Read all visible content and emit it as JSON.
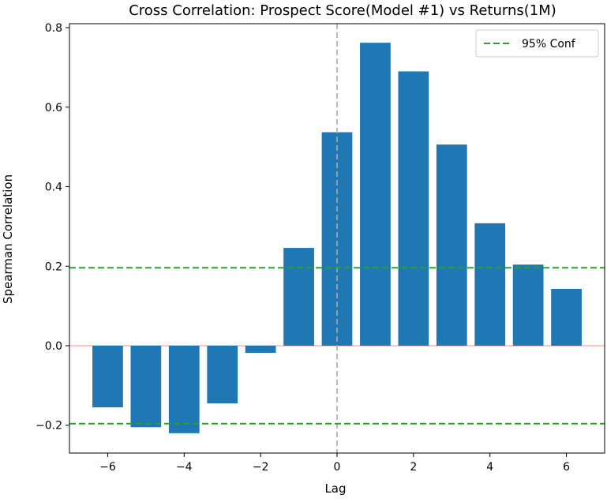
{
  "chart_data": {
    "type": "bar",
    "title": "Cross Correlation: Prospect Score(Model #1) vs Returns(1M)",
    "xlabel": "Lag",
    "ylabel": "Spearman Correlation",
    "x": [
      -6,
      -5,
      -4,
      -3,
      -2,
      -1,
      0,
      1,
      2,
      3,
      4,
      5,
      6
    ],
    "values": [
      -0.155,
      -0.205,
      -0.22,
      -0.145,
      -0.018,
      0.246,
      0.537,
      0.762,
      0.69,
      0.506,
      0.308,
      0.204,
      0.143
    ],
    "xlim": [
      -7,
      7
    ],
    "ylim": [
      -0.27,
      0.81
    ],
    "xticks": [
      -6,
      -4,
      -2,
      0,
      2,
      4,
      6
    ],
    "xtick_labels": [
      "−6",
      "−4",
      "−2",
      "0",
      "2",
      "4",
      "6"
    ],
    "yticks": [
      -0.2,
      0.0,
      0.2,
      0.4,
      0.6,
      0.8
    ],
    "ytick_labels": [
      "−0.2",
      "0.0",
      "0.2",
      "0.4",
      "0.6",
      "0.8"
    ],
    "conf_level": 0.196,
    "grid": false,
    "legend": {
      "placement": "top-right",
      "entries": [
        "95% Conf"
      ]
    },
    "colors": {
      "bar": "#1f77b4",
      "conf_line": "#2ca02c",
      "zero_line": "#ffb3b3",
      "lag_zero_line": "#aaaaaa"
    }
  }
}
